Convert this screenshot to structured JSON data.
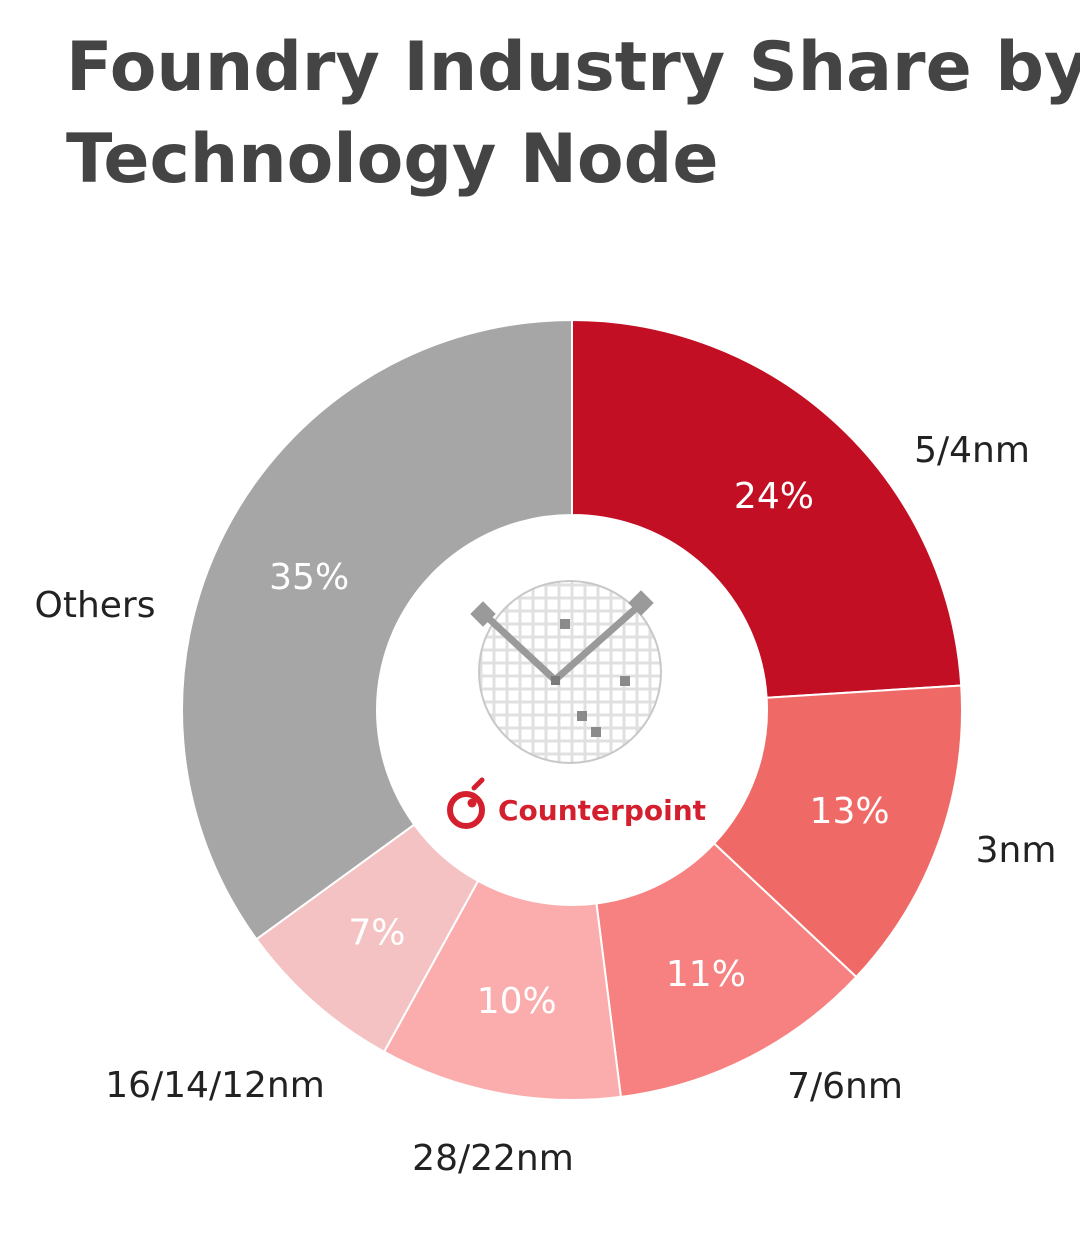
{
  "chart_data": {
    "type": "pie",
    "variant": "donut",
    "title_lines": [
      "Foundry Industry Share by",
      "Technology Node"
    ],
    "categories": [
      "5/4nm",
      "3nm",
      "7/6nm",
      "28/22nm",
      "16/14/12nm",
      "Others"
    ],
    "values": [
      24,
      13,
      11,
      10,
      7,
      35
    ],
    "value_labels": [
      "24%",
      "13%",
      "11%",
      "10%",
      "7%",
      "35%"
    ],
    "colors": [
      "#c30f23",
      "#ef6a66",
      "#f78080",
      "#fbacad",
      "#f4c2c2",
      "#a6a6a6"
    ],
    "unit": "%"
  },
  "logo": {
    "name": "Counterpoint",
    "color": "#d4202e"
  }
}
